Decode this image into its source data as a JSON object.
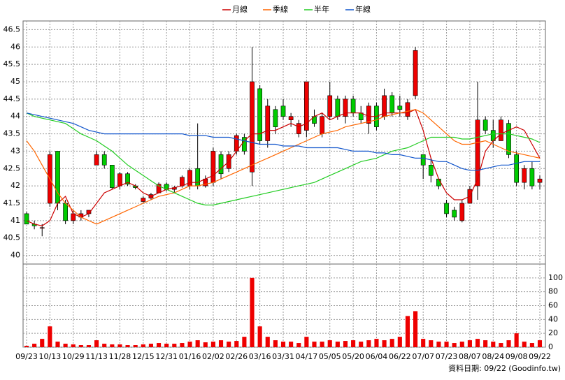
{
  "chart_data": {
    "type": "candlestick",
    "categories": [
      "09/23",
      null,
      null,
      "10/13",
      null,
      null,
      "10/29",
      null,
      null,
      "11/13",
      null,
      null,
      "11/28",
      null,
      null,
      "12/15",
      null,
      null,
      "12/31",
      null,
      null,
      "01/16",
      null,
      null,
      "02/02",
      null,
      null,
      "02/26",
      null,
      null,
      "03/16",
      null,
      null,
      "03/31",
      null,
      null,
      "04/17",
      null,
      null,
      "05/05",
      null,
      null,
      "05/20",
      null,
      null,
      "06/04",
      null,
      null,
      "06/22",
      null,
      null,
      "07/07",
      null,
      null,
      "07/23",
      null,
      null,
      "08/07",
      null,
      null,
      "08/24",
      null,
      null,
      "09/08",
      null,
      null,
      "09/22"
    ],
    "open": [
      41.2,
      40.9,
      40.8,
      41.5,
      43.0,
      41.5,
      41.0,
      41.1,
      41.2,
      42.6,
      42.9,
      42.6,
      42.0,
      42.35,
      42.0,
      41.55,
      41.65,
      41.8,
      42.05,
      41.9,
      42.0,
      42.0,
      42.5,
      42.0,
      42.1,
      42.9,
      42.5,
      43.0,
      43.4,
      42.4,
      44.8,
      43.3,
      44.2,
      44.3,
      43.9,
      43.5,
      43.6,
      44.0,
      43.5,
      44.0,
      44.5,
      44.0,
      44.5,
      44.1,
      43.8,
      44.3,
      44.0,
      44.6,
      44.3,
      44.0,
      44.6,
      42.9,
      42.6,
      42.2,
      41.5,
      41.3,
      41.0,
      41.5,
      42.0,
      43.9,
      43.6,
      43.3,
      43.8,
      42.9,
      42.1,
      42.5,
      42.1
    ],
    "high": [
      41.25,
      41.0,
      40.9,
      43.0,
      43.0,
      41.6,
      41.3,
      41.3,
      41.3,
      43.0,
      43.0,
      42.6,
      42.4,
      42.4,
      42.05,
      41.7,
      41.8,
      42.1,
      42.1,
      42.0,
      42.3,
      42.5,
      43.8,
      42.3,
      43.1,
      43.0,
      43.0,
      43.5,
      43.5,
      46.0,
      44.9,
      44.5,
      44.3,
      44.5,
      44.1,
      43.9,
      45.0,
      44.2,
      44.1,
      45.0,
      44.6,
      44.6,
      44.6,
      44.3,
      44.4,
      44.4,
      44.8,
      44.7,
      44.6,
      44.5,
      46.0,
      42.9,
      42.8,
      42.2,
      41.6,
      41.4,
      41.6,
      42.0,
      45.0,
      44.0,
      43.9,
      44.0,
      43.9,
      43.0,
      42.6,
      42.7,
      42.3
    ],
    "low": [
      40.9,
      40.75,
      40.55,
      41.4,
      41.3,
      40.9,
      40.9,
      41.0,
      41.1,
      42.6,
      42.5,
      41.9,
      41.9,
      42.0,
      41.9,
      41.5,
      41.6,
      41.8,
      41.85,
      41.8,
      41.95,
      41.9,
      41.9,
      41.95,
      42.0,
      42.2,
      42.4,
      42.9,
      42.9,
      42.0,
      43.2,
      43.1,
      43.5,
      43.9,
      43.7,
      43.4,
      43.4,
      43.7,
      43.4,
      43.9,
      43.9,
      43.8,
      44.0,
      43.8,
      43.5,
      43.6,
      43.9,
      44.0,
      44.0,
      43.9,
      44.5,
      42.2,
      42.1,
      41.9,
      41.1,
      41.0,
      40.95,
      41.5,
      41.6,
      43.5,
      43.1,
      43.3,
      42.8,
      42.0,
      41.9,
      41.9,
      41.9
    ],
    "close": [
      40.9,
      40.85,
      40.8,
      42.9,
      41.5,
      41.0,
      41.2,
      41.2,
      41.3,
      42.9,
      42.6,
      41.95,
      42.35,
      42.05,
      41.95,
      41.65,
      41.75,
      42.05,
      41.9,
      41.95,
      42.25,
      42.45,
      42.0,
      42.2,
      43.0,
      42.35,
      42.9,
      43.45,
      43.0,
      45.0,
      43.3,
      44.3,
      43.7,
      44.0,
      44.0,
      43.8,
      45.0,
      43.8,
      44.0,
      44.6,
      44.0,
      44.5,
      44.1,
      43.9,
      44.3,
      43.7,
      44.6,
      44.1,
      44.2,
      44.4,
      45.9,
      42.6,
      42.3,
      42.0,
      41.2,
      41.1,
      41.5,
      41.9,
      43.9,
      43.6,
      43.3,
      43.9,
      42.9,
      42.1,
      42.5,
      42.0,
      42.2
    ],
    "volume": [
      2,
      5,
      12,
      30,
      8,
      5,
      4,
      3,
      3,
      10,
      5,
      4,
      4,
      3,
      3,
      4,
      5,
      6,
      5,
      5,
      6,
      8,
      10,
      7,
      8,
      10,
      8,
      9,
      15,
      100,
      30,
      15,
      10,
      8,
      8,
      6,
      15,
      8,
      8,
      10,
      8,
      9,
      10,
      8,
      10,
      12,
      10,
      12,
      15,
      45,
      52,
      12,
      10,
      8,
      8,
      6,
      8,
      10,
      12,
      10,
      8,
      6,
      10,
      20,
      8,
      6,
      10
    ],
    "up_color": "#ee0000",
    "down_color": "#00cc00",
    "volume_color": "#ee0000",
    "series": [
      {
        "name": "月線",
        "color": "#cc0000",
        "values": [
          41.0,
          40.9,
          40.85,
          41.0,
          41.5,
          41.7,
          41.2,
          41.1,
          41.2,
          41.5,
          41.8,
          41.9,
          42.0,
          42.1,
          42.0,
          41.8,
          41.7,
          41.8,
          41.9,
          41.95,
          42.0,
          42.1,
          42.1,
          42.2,
          42.3,
          42.5,
          42.7,
          43.0,
          43.3,
          43.5,
          43.5,
          43.6,
          43.6,
          43.7,
          43.8,
          43.7,
          43.8,
          44.0,
          44.1,
          43.9,
          44.0,
          44.1,
          44.1,
          44.1,
          44.0,
          44.0,
          44.1,
          44.1,
          44.1,
          44.1,
          44.2,
          43.6,
          42.8,
          42.2,
          41.8,
          41.6,
          41.6,
          41.7,
          42.2,
          43.0,
          43.3,
          43.5,
          43.6,
          43.7,
          43.6,
          43.2,
          42.8
        ]
      },
      {
        "name": "季線",
        "color": "#ff6600",
        "values": [
          43.3,
          43.0,
          42.6,
          42.2,
          41.8,
          41.5,
          41.3,
          41.1,
          41.0,
          40.9,
          41.0,
          41.1,
          41.2,
          41.3,
          41.4,
          41.5,
          41.6,
          41.7,
          41.75,
          41.8,
          41.9,
          42.0,
          42.0,
          42.05,
          42.1,
          42.2,
          42.3,
          42.4,
          42.5,
          42.6,
          42.7,
          42.8,
          42.9,
          43.0,
          43.1,
          43.2,
          43.3,
          43.4,
          43.5,
          43.55,
          43.6,
          43.7,
          43.75,
          43.8,
          43.85,
          43.9,
          44.0,
          44.05,
          44.1,
          44.15,
          44.2,
          44.1,
          43.9,
          43.7,
          43.5,
          43.3,
          43.2,
          43.2,
          43.25,
          43.3,
          43.2,
          43.1,
          43.0,
          42.95,
          42.9,
          42.85,
          42.8
        ]
      },
      {
        "name": "半年",
        "color": "#22cc22",
        "values": [
          44.1,
          44.0,
          43.95,
          43.9,
          43.85,
          43.8,
          43.65,
          43.5,
          43.4,
          43.3,
          43.15,
          43.0,
          42.8,
          42.6,
          42.45,
          42.3,
          42.15,
          42.0,
          41.9,
          41.8,
          41.7,
          41.6,
          41.5,
          41.45,
          41.45,
          41.5,
          41.55,
          41.6,
          41.65,
          41.7,
          41.75,
          41.8,
          41.85,
          41.9,
          41.95,
          42.0,
          42.05,
          42.1,
          42.2,
          42.3,
          42.4,
          42.5,
          42.6,
          42.7,
          42.75,
          42.8,
          42.9,
          43.0,
          43.05,
          43.1,
          43.2,
          43.3,
          43.4,
          43.4,
          43.4,
          43.4,
          43.35,
          43.35,
          43.4,
          43.45,
          43.5,
          43.5,
          43.5,
          43.45,
          43.4,
          43.35,
          43.25
        ]
      },
      {
        "name": "年線",
        "color": "#1155cc",
        "values": [
          44.1,
          44.05,
          44.0,
          43.95,
          43.9,
          43.85,
          43.8,
          43.7,
          43.6,
          43.55,
          43.5,
          43.5,
          43.5,
          43.5,
          43.5,
          43.5,
          43.5,
          43.5,
          43.5,
          43.5,
          43.5,
          43.45,
          43.45,
          43.45,
          43.4,
          43.4,
          43.4,
          43.35,
          43.3,
          43.25,
          43.2,
          43.2,
          43.2,
          43.15,
          43.15,
          43.15,
          43.1,
          43.1,
          43.1,
          43.1,
          43.1,
          43.05,
          43.0,
          43.0,
          43.0,
          42.95,
          42.95,
          42.9,
          42.9,
          42.85,
          42.8,
          42.8,
          42.75,
          42.7,
          42.7,
          42.6,
          42.5,
          42.45,
          42.45,
          42.5,
          42.55,
          42.6,
          42.6,
          42.65,
          42.7,
          42.7,
          42.7
        ]
      }
    ],
    "ylim": [
      39.75,
      46.75
    ],
    "yticks": [
      40,
      40.5,
      41,
      41.5,
      42,
      42.5,
      43,
      43.5,
      44,
      44.5,
      45,
      45.5,
      46,
      46.5
    ],
    "y2lim": [
      0,
      120
    ],
    "y2ticks": [
      0,
      20,
      40,
      60,
      80,
      100
    ],
    "grid": true,
    "footnote": "資料日期: 09/22",
    "source": "(Goodinfo.tw)"
  }
}
